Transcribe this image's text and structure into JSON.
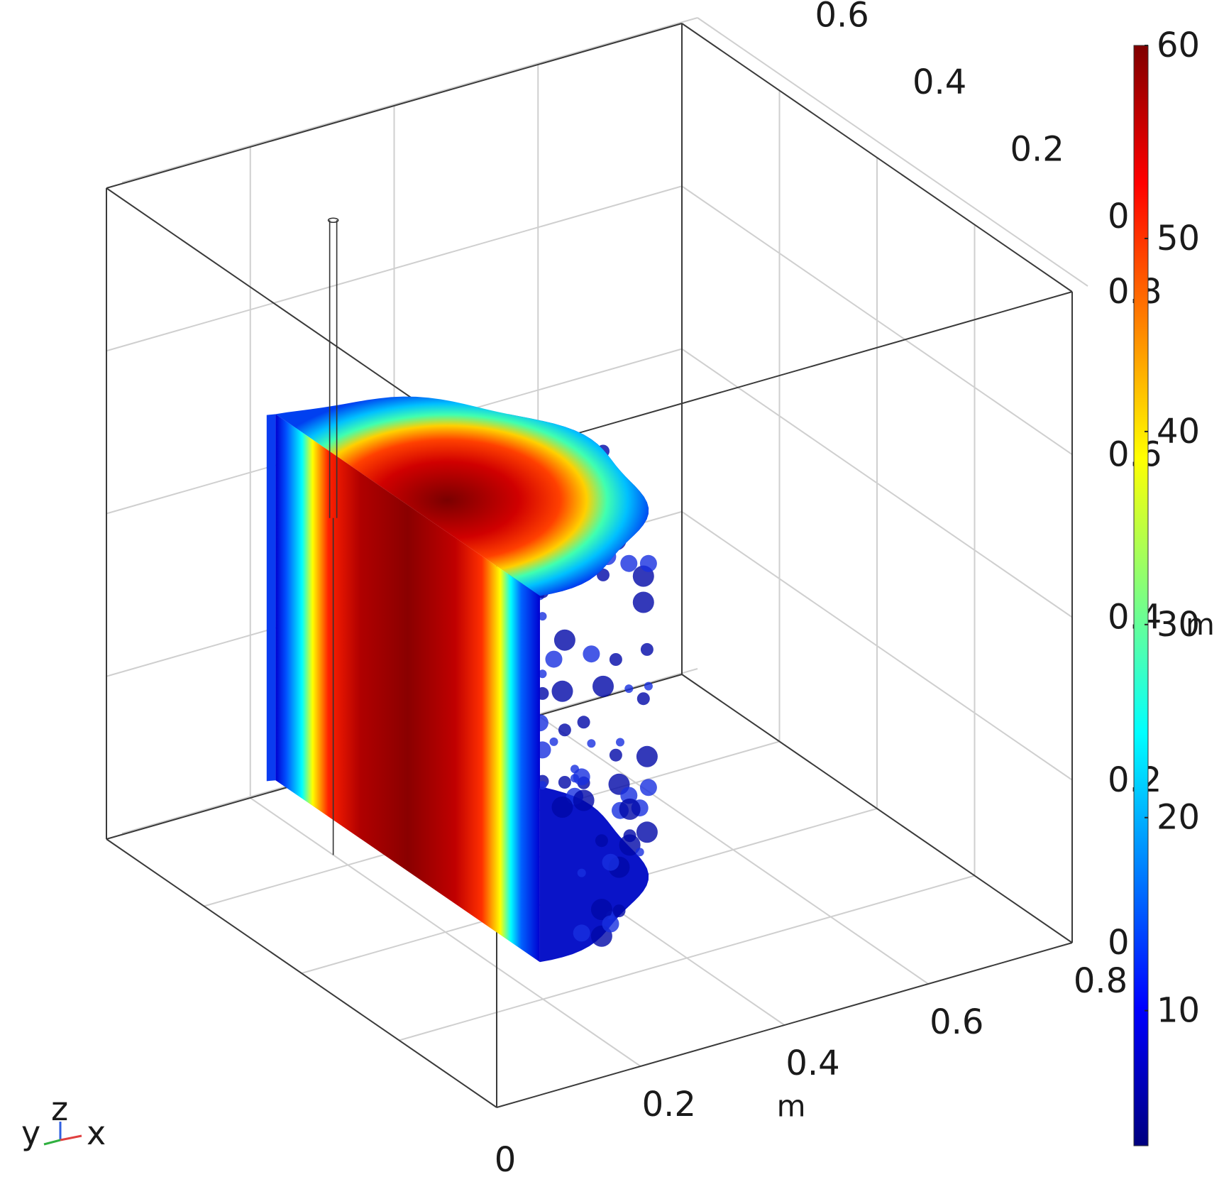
{
  "chart_data": {
    "type": "heatmap",
    "title": "",
    "x_axis": {
      "label": "m",
      "ticks": [
        "0",
        "0.2",
        "0.4",
        "0.6",
        "0.8"
      ],
      "range": [
        0,
        0.8
      ]
    },
    "y_axis": {
      "label": "m",
      "ticks": [
        "0",
        "0.2",
        "0.4",
        "0.6",
        "0.8"
      ],
      "range": [
        0,
        0.8
      ]
    },
    "z_axis": {
      "label": "m",
      "ticks": [
        "0",
        "0.2",
        "0.4",
        "0.6",
        "0.8"
      ],
      "range": [
        0,
        0.8
      ]
    },
    "colorbar": {
      "ticks": [
        "10",
        "20",
        "30",
        "40",
        "50",
        "60"
      ],
      "range": [
        3,
        60
      ],
      "colormap": [
        "#00007f",
        "#0000ff",
        "#007fff",
        "#00ffff",
        "#7fff7f",
        "#ffff00",
        "#ff7f00",
        "#ff0000",
        "#7f0000"
      ]
    },
    "grid": true,
    "axis_triad": {
      "labels": [
        "y",
        "z",
        "x"
      ]
    }
  }
}
